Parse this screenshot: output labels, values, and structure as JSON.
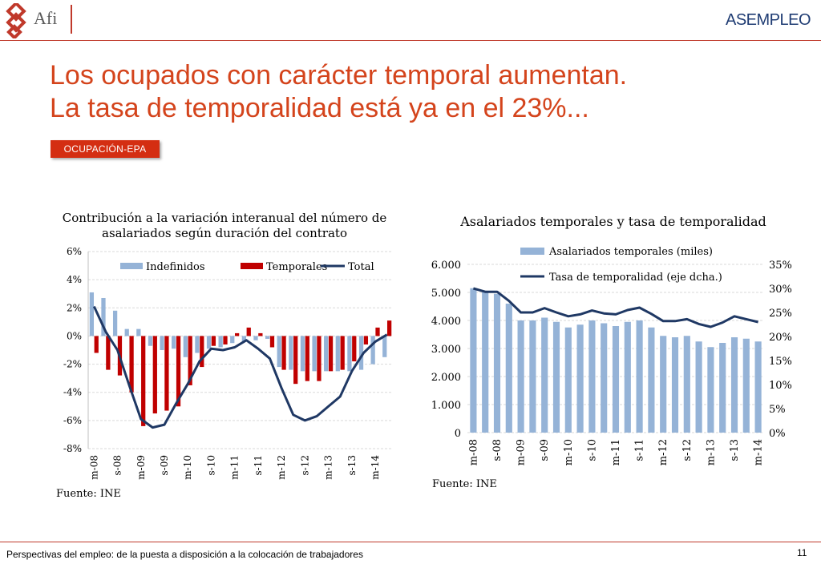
{
  "header": {
    "afi_logo_text": "Afi",
    "asempleo_logo_text": "ASEMPLEO"
  },
  "slide": {
    "title_line1": "Los ocupados con carácter temporal aumentan.",
    "title_line2": "La tasa de temporalidad está ya en el 23%...",
    "section_badge": "OCUPACIÓN-EPA"
  },
  "footer": {
    "text": "Perspectivas del empleo: de la puesta a disposición a la colocación de trabajadores",
    "page_number": "11"
  },
  "colors": {
    "accent_red": "#d4441c",
    "bar_light_blue": "#95b3d7",
    "bar_dark_red": "#c00000",
    "line_navy": "#1f3864"
  },
  "chart_data": [
    {
      "type": "bar",
      "title_line1": "Contribución a la variación interanual del número de",
      "title_line2": "asalariados según duración del contrato",
      "source": "Fuente: INE",
      "x_tick_labels": [
        "m-08",
        "s-08",
        "m-09",
        "s-09",
        "m-10",
        "s-10",
        "m-11",
        "s-11",
        "m-12",
        "s-12",
        "m-13",
        "s-13",
        "m-14"
      ],
      "ylim": [
        -8,
        6
      ],
      "y_ticks": [
        "6%",
        "4%",
        "2%",
        "0%",
        "-2%",
        "-4%",
        "-6%",
        "-8%"
      ],
      "grid": true,
      "legend_position": "top",
      "series": [
        {
          "name": "Indefinidos",
          "kind": "bar",
          "color": "#95b3d7",
          "values": [
            3.1,
            2.7,
            1.8,
            0.5,
            0.5,
            -0.7,
            -1.0,
            -0.9,
            -1.5,
            -1.2,
            -0.9,
            -0.8,
            -0.5,
            -0.4,
            -0.3,
            -0.2,
            -2.2,
            -2.4,
            -2.5,
            -2.5,
            -2.5,
            -2.5,
            -2.5,
            -2.4,
            -2.0,
            -1.5
          ]
        },
        {
          "name": "Temporales",
          "kind": "bar",
          "color": "#c00000",
          "values": [
            -1.2,
            -2.4,
            -2.8,
            -4.0,
            -6.4,
            -5.5,
            -5.3,
            -5.0,
            -3.5,
            -2.2,
            -0.7,
            -0.6,
            0.2,
            0.6,
            0.2,
            -0.8,
            -2.4,
            -3.4,
            -3.2,
            -3.2,
            -2.5,
            -2.4,
            -1.8,
            -0.6,
            0.6,
            1.1
          ]
        },
        {
          "name": "Total",
          "kind": "line",
          "color": "#1f3864",
          "values": [
            2.1,
            0.3,
            -1.0,
            -3.5,
            -5.9,
            -6.5,
            -6.3,
            -4.8,
            -3.4,
            -1.8,
            -0.9,
            -1.0,
            -0.8,
            -0.3,
            -0.9,
            -1.6,
            -3.7,
            -5.6,
            -6.0,
            -5.7,
            -5.0,
            -4.3,
            -2.5,
            -1.2,
            -0.4,
            0.1
          ]
        }
      ]
    },
    {
      "type": "bar+line",
      "title": "Asalariados temporales y tasa de temporalidad",
      "source": "Fuente: INE",
      "x_tick_labels": [
        "m-08",
        "s-08",
        "m-09",
        "s-09",
        "m-10",
        "s-10",
        "m-11",
        "s-11",
        "m-12",
        "s-12",
        "m-13",
        "s-13",
        "m-14"
      ],
      "ylim_left": [
        0,
        6000
      ],
      "y_ticks_left": [
        "6.000",
        "5.000",
        "4.000",
        "3.000",
        "2.000",
        "1.000",
        "0"
      ],
      "ylim_right": [
        0,
        35
      ],
      "y_ticks_right": [
        "35%",
        "30%",
        "25%",
        "20%",
        "15%",
        "10%",
        "5%",
        "0%"
      ],
      "grid": true,
      "legend_position": "top",
      "series": [
        {
          "name": "Asalariados temporales (miles)",
          "kind": "bar",
          "axis": "left",
          "color": "#95b3d7",
          "values": [
            5150,
            5050,
            4950,
            4600,
            4000,
            4000,
            4100,
            3950,
            3750,
            3850,
            4000,
            3900,
            3800,
            3950,
            4000,
            3750,
            3450,
            3400,
            3450,
            3250,
            3050,
            3200,
            3400,
            3350,
            3250
          ]
        },
        {
          "name": "Tasa de temporalidad (eje dcha.)",
          "kind": "line",
          "axis": "right",
          "color": "#1f3864",
          "values": [
            30.0,
            29.3,
            29.3,
            27.4,
            25.0,
            25.0,
            25.9,
            25.0,
            24.2,
            24.6,
            25.4,
            24.8,
            24.6,
            25.5,
            26.0,
            24.7,
            23.2,
            23.2,
            23.6,
            22.6,
            22.0,
            22.9,
            24.2,
            23.6,
            23.0
          ]
        }
      ]
    }
  ]
}
